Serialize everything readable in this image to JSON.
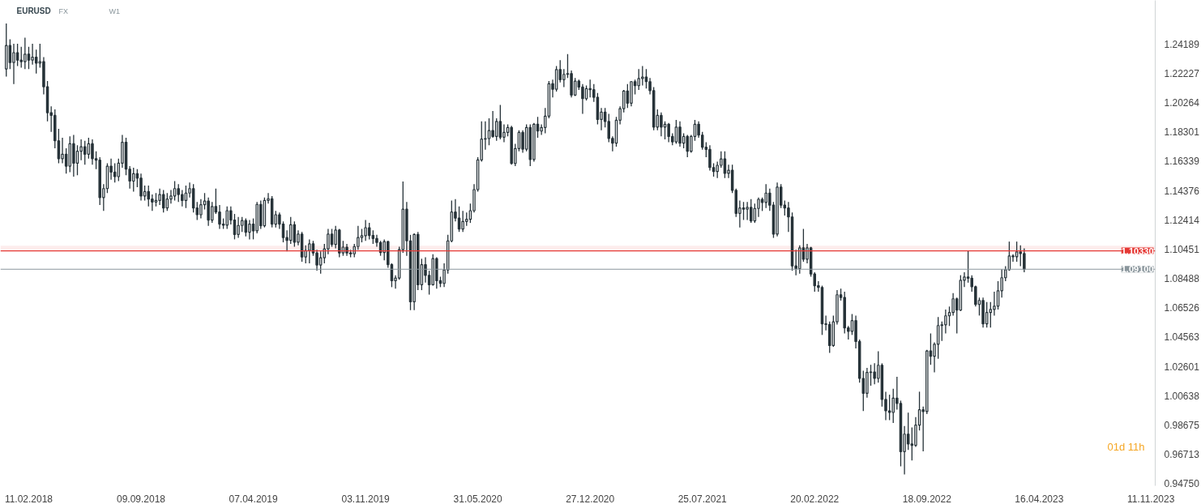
{
  "chart_data": {
    "type": "candlestick",
    "title": "EURUSD",
    "annotations": [
      "FX",
      "W1",
      "01d 11h"
    ],
    "color": "#263238",
    "x": [
      "2017-12-31",
      "2018-01-07",
      "2018-01-14",
      "2018-01-21",
      "2018-01-28",
      "2018-02-04",
      "2018-02-11",
      "2018-02-18",
      "2018-02-25",
      "2018-03-04",
      "2018-03-11",
      "2018-03-18",
      "2018-03-25",
      "2018-04-01",
      "2018-04-08",
      "2018-04-15",
      "2018-04-22",
      "2018-04-29",
      "2018-05-06",
      "2018-05-13",
      "2018-05-20",
      "2018-05-27",
      "2018-06-03",
      "2018-06-10",
      "2018-06-17",
      "2018-06-24",
      "2018-07-01",
      "2018-07-08",
      "2018-07-15",
      "2018-07-22",
      "2018-07-29",
      "2018-08-05",
      "2018-08-12",
      "2018-08-19",
      "2018-08-26",
      "2018-09-02",
      "2018-09-09",
      "2018-09-16",
      "2018-09-23",
      "2018-09-30",
      "2018-10-07",
      "2018-10-14",
      "2018-10-21",
      "2018-10-28",
      "2018-11-04",
      "2018-11-11",
      "2018-11-18",
      "2018-11-25",
      "2018-12-02",
      "2018-12-09",
      "2018-12-16",
      "2018-12-23",
      "2018-12-30",
      "2019-01-06",
      "2019-01-13",
      "2019-01-20",
      "2019-01-27",
      "2019-02-03",
      "2019-02-10",
      "2019-02-17",
      "2019-02-24",
      "2019-03-03",
      "2019-03-10",
      "2019-03-17",
      "2019-03-24",
      "2019-03-31",
      "2019-04-07",
      "2019-04-14",
      "2019-04-21",
      "2019-04-28",
      "2019-05-05",
      "2019-05-12",
      "2019-05-19",
      "2019-05-26",
      "2019-06-02",
      "2019-06-09",
      "2019-06-16",
      "2019-06-23",
      "2019-06-30",
      "2019-07-07",
      "2019-07-14",
      "2019-07-21",
      "2019-07-28",
      "2019-08-04",
      "2019-08-11",
      "2019-08-18",
      "2019-08-25",
      "2019-09-01",
      "2019-09-08",
      "2019-09-15",
      "2019-09-22",
      "2019-09-29",
      "2019-10-06",
      "2019-10-13",
      "2019-10-20",
      "2019-10-27",
      "2019-11-03",
      "2019-11-10",
      "2019-11-17",
      "2019-11-24",
      "2019-12-01",
      "2019-12-08",
      "2019-12-15",
      "2019-12-22",
      "2019-12-29",
      "2020-01-05",
      "2020-01-12",
      "2020-01-19",
      "2020-01-26",
      "2020-02-02",
      "2020-02-09",
      "2020-02-16",
      "2020-02-23",
      "2020-03-01",
      "2020-03-08",
      "2020-03-15",
      "2020-03-22",
      "2020-03-29",
      "2020-04-05",
      "2020-04-12",
      "2020-04-19",
      "2020-04-26",
      "2020-05-03",
      "2020-05-10",
      "2020-05-17",
      "2020-05-24",
      "2020-05-31",
      "2020-06-07",
      "2020-06-14",
      "2020-06-21",
      "2020-06-28",
      "2020-07-05",
      "2020-07-12",
      "2020-07-19",
      "2020-07-26",
      "2020-08-02",
      "2020-08-09",
      "2020-08-16",
      "2020-08-23",
      "2020-08-30",
      "2020-09-06",
      "2020-09-13",
      "2020-09-20",
      "2020-09-27",
      "2020-10-04",
      "2020-10-11",
      "2020-10-18",
      "2020-10-25",
      "2020-11-01",
      "2020-11-08",
      "2020-11-15",
      "2020-11-22",
      "2020-11-29",
      "2020-12-06",
      "2020-12-13",
      "2020-12-20",
      "2020-12-27",
      "2021-01-03",
      "2021-01-10",
      "2021-01-17",
      "2021-01-24",
      "2021-01-31",
      "2021-02-07",
      "2021-02-14",
      "2021-02-21",
      "2021-02-28",
      "2021-03-07",
      "2021-03-14",
      "2021-03-21",
      "2021-03-28",
      "2021-04-04",
      "2021-04-11",
      "2021-04-18",
      "2021-04-25",
      "2021-05-02",
      "2021-05-09",
      "2021-05-16",
      "2021-05-23",
      "2021-05-30",
      "2021-06-06",
      "2021-06-13",
      "2021-06-20",
      "2021-06-27",
      "2021-07-04",
      "2021-07-11",
      "2021-07-18",
      "2021-07-25",
      "2021-08-01",
      "2021-08-08",
      "2021-08-15",
      "2021-08-22",
      "2021-08-29",
      "2021-09-05",
      "2021-09-12",
      "2021-09-19",
      "2021-09-26",
      "2021-10-03",
      "2021-10-10",
      "2021-10-17",
      "2021-10-24",
      "2021-10-31",
      "2021-11-07",
      "2021-11-14",
      "2021-11-21",
      "2021-11-28",
      "2021-12-05",
      "2021-12-12",
      "2021-12-19",
      "2021-12-26",
      "2022-01-02",
      "2022-01-09",
      "2022-01-16",
      "2022-01-23",
      "2022-01-30",
      "2022-02-06",
      "2022-02-13",
      "2022-02-20",
      "2022-02-27",
      "2022-03-06",
      "2022-03-13",
      "2022-03-20",
      "2022-03-27",
      "2022-04-03",
      "2022-04-10",
      "2022-04-17",
      "2022-04-24",
      "2022-05-01",
      "2022-05-08",
      "2022-05-15",
      "2022-05-22",
      "2022-05-29",
      "2022-06-05",
      "2022-06-12",
      "2022-06-19",
      "2022-06-26",
      "2022-07-03",
      "2022-07-10",
      "2022-07-17",
      "2022-07-24",
      "2022-07-31",
      "2022-08-07",
      "2022-08-14",
      "2022-08-21",
      "2022-08-28",
      "2022-09-04",
      "2022-09-11",
      "2022-09-18",
      "2022-09-25",
      "2022-10-02",
      "2022-10-09",
      "2022-10-16",
      "2022-10-23",
      "2022-10-30",
      "2022-11-06",
      "2022-11-13",
      "2022-11-20",
      "2022-11-27",
      "2022-12-04",
      "2022-12-11",
      "2022-12-18",
      "2022-12-25",
      "2023-01-01",
      "2023-01-08",
      "2023-01-15",
      "2023-01-22",
      "2023-01-29",
      "2023-02-05",
      "2023-02-12",
      "2023-02-19",
      "2023-02-26",
      "2023-03-05",
      "2023-03-12",
      "2023-03-19"
    ],
    "ohlc": [
      [
        1.2251,
        1.2555,
        1.22,
        1.2408
      ],
      [
        1.2408,
        1.245,
        1.225,
        1.2294
      ],
      [
        1.2294,
        1.242,
        1.215,
        1.236
      ],
      [
        1.236,
        1.242,
        1.227,
        1.231
      ],
      [
        1.231,
        1.24,
        1.226,
        1.23
      ],
      [
        1.23,
        1.246,
        1.225,
        1.235
      ],
      [
        1.235,
        1.24,
        1.225,
        1.231
      ],
      [
        1.231,
        1.242,
        1.228,
        1.233
      ],
      [
        1.233,
        1.238,
        1.222,
        1.229
      ],
      [
        1.229,
        1.242,
        1.226,
        1.23
      ],
      [
        1.23,
        1.233,
        1.208,
        1.2132
      ],
      [
        1.2132,
        1.217,
        1.19,
        1.1958
      ],
      [
        1.1958,
        1.2,
        1.183,
        1.194
      ],
      [
        1.194,
        1.198,
        1.172,
        1.177
      ],
      [
        1.177,
        1.185,
        1.162,
        1.165
      ],
      [
        1.165,
        1.179,
        1.162,
        1.168
      ],
      [
        1.168,
        1.172,
        1.155,
        1.16
      ],
      [
        1.16,
        1.18,
        1.156,
        1.175
      ],
      [
        1.175,
        1.181,
        1.153,
        1.162
      ],
      [
        1.162,
        1.174,
        1.154,
        1.17
      ],
      [
        1.17,
        1.178,
        1.164,
        1.173
      ],
      [
        1.173,
        1.177,
        1.161,
        1.168
      ],
      [
        1.168,
        1.179,
        1.165,
        1.175
      ],
      [
        1.175,
        1.178,
        1.161,
        1.165
      ],
      [
        1.165,
        1.17,
        1.158,
        1.164
      ],
      [
        1.164,
        1.166,
        1.134,
        1.139
      ],
      [
        1.139,
        1.148,
        1.13,
        1.145
      ],
      [
        1.145,
        1.162,
        1.142,
        1.16
      ],
      [
        1.16,
        1.165,
        1.151,
        1.156
      ],
      [
        1.156,
        1.162,
        1.149,
        1.153
      ],
      [
        1.153,
        1.165,
        1.15,
        1.162
      ],
      [
        1.162,
        1.181,
        1.159,
        1.176
      ],
      [
        1.176,
        1.179,
        1.154,
        1.158
      ],
      [
        1.158,
        1.16,
        1.145,
        1.15
      ],
      [
        1.15,
        1.159,
        1.143,
        1.155
      ],
      [
        1.155,
        1.158,
        1.146,
        1.152
      ],
      [
        1.152,
        1.155,
        1.137,
        1.14
      ],
      [
        1.14,
        1.147,
        1.137,
        1.143
      ],
      [
        1.143,
        1.147,
        1.133,
        1.138
      ],
      [
        1.138,
        1.141,
        1.13,
        1.136
      ],
      [
        1.136,
        1.142,
        1.133,
        1.137
      ],
      [
        1.137,
        1.145,
        1.134,
        1.141
      ],
      [
        1.141,
        1.144,
        1.129,
        1.132
      ],
      [
        1.132,
        1.142,
        1.13,
        1.138
      ],
      [
        1.138,
        1.144,
        1.135,
        1.14
      ],
      [
        1.14,
        1.15,
        1.137,
        1.145
      ],
      [
        1.145,
        1.148,
        1.136,
        1.141
      ],
      [
        1.141,
        1.144,
        1.133,
        1.137
      ],
      [
        1.137,
        1.147,
        1.132,
        1.142
      ],
      [
        1.142,
        1.149,
        1.139,
        1.145
      ],
      [
        1.145,
        1.148,
        1.129,
        1.132
      ],
      [
        1.132,
        1.136,
        1.124,
        1.1275
      ],
      [
        1.1275,
        1.138,
        1.125,
        1.1342
      ],
      [
        1.1342,
        1.142,
        1.131,
        1.1367
      ],
      [
        1.1367,
        1.139,
        1.12,
        1.1239
      ],
      [
        1.1239,
        1.136,
        1.122,
        1.133
      ],
      [
        1.133,
        1.145,
        1.128,
        1.1293
      ],
      [
        1.1293,
        1.134,
        1.118,
        1.1212
      ],
      [
        1.1212,
        1.125,
        1.118,
        1.1205
      ],
      [
        1.1205,
        1.133,
        1.118,
        1.1302
      ],
      [
        1.1302,
        1.133,
        1.121,
        1.1239
      ],
      [
        1.1239,
        1.128,
        1.111,
        1.1143
      ],
      [
        1.1143,
        1.126,
        1.112,
        1.1203
      ],
      [
        1.1203,
        1.126,
        1.116,
        1.1236
      ],
      [
        1.1236,
        1.125,
        1.113,
        1.1158
      ],
      [
        1.1158,
        1.124,
        1.111,
        1.1212
      ],
      [
        1.1212,
        1.125,
        1.111,
        1.1167
      ],
      [
        1.1167,
        1.136,
        1.115,
        1.1344
      ],
      [
        1.1344,
        1.137,
        1.118,
        1.1201
      ],
      [
        1.1201,
        1.139,
        1.119,
        1.1371
      ],
      [
        1.1371,
        1.142,
        1.135,
        1.1382
      ],
      [
        1.1382,
        1.14,
        1.119,
        1.1212
      ],
      [
        1.1212,
        1.13,
        1.119,
        1.1275
      ],
      [
        1.1275,
        1.129,
        1.118,
        1.1212
      ],
      [
        1.1212,
        1.123,
        1.109,
        1.1122
      ],
      [
        1.1122,
        1.117,
        1.103,
        1.1103
      ],
      [
        1.1103,
        1.126,
        1.108,
        1.1208
      ],
      [
        1.1208,
        1.123,
        1.106,
        1.1091
      ],
      [
        1.1091,
        1.117,
        1.107,
        1.1145
      ],
      [
        1.1145,
        1.116,
        1.096,
        1.0992
      ],
      [
        1.0992,
        1.107,
        1.095,
        1.1035
      ],
      [
        1.1035,
        1.111,
        1.095,
        1.108
      ],
      [
        1.108,
        1.11,
        1.1,
        1.1019
      ],
      [
        1.1019,
        1.104,
        1.09,
        1.0938
      ],
      [
        1.0938,
        1.103,
        1.088,
        1.0987
      ],
      [
        1.0987,
        1.108,
        1.095,
        1.1046
      ],
      [
        1.1046,
        1.118,
        1.101,
        1.1145
      ],
      [
        1.1145,
        1.118,
        1.106,
        1.1076
      ],
      [
        1.1076,
        1.12,
        1.105,
        1.1172
      ],
      [
        1.1172,
        1.118,
        1.099,
        1.1019
      ],
      [
        1.1019,
        1.11,
        1.1,
        1.1058
      ],
      [
        1.1058,
        1.108,
        1.1,
        1.1019
      ],
      [
        1.1019,
        1.104,
        1.099,
        1.1013
      ],
      [
        1.1013,
        1.108,
        1.099,
        1.1062
      ],
      [
        1.1062,
        1.12,
        1.104,
        1.1122
      ],
      [
        1.1122,
        1.118,
        1.109,
        1.1134
      ],
      [
        1.1134,
        1.124,
        1.11,
        1.1188
      ],
      [
        1.1188,
        1.122,
        1.111,
        1.1136
      ],
      [
        1.1136,
        1.117,
        1.108,
        1.1116
      ],
      [
        1.1116,
        1.114,
        1.106,
        1.1089
      ],
      [
        1.1089,
        1.11,
        1.1,
        1.1022
      ],
      [
        1.1022,
        1.111,
        1.097,
        1.1095
      ],
      [
        1.1095,
        1.11,
        1.092,
        1.0941
      ],
      [
        1.0941,
        1.095,
        1.079,
        1.0833
      ],
      [
        1.0833,
        1.087,
        1.078,
        1.0851
      ],
      [
        1.0851,
        1.106,
        1.084,
        1.1041
      ],
      [
        1.1041,
        1.1497,
        1.102,
        1.1312
      ],
      [
        1.1312,
        1.136,
        1.1,
        1.11
      ],
      [
        1.11,
        1.114,
        1.0636,
        1.0692
      ],
      [
        1.0692,
        1.115,
        1.0636,
        1.1143
      ],
      [
        1.1143,
        1.116,
        1.077,
        1.0806
      ],
      [
        1.0806,
        1.098,
        1.077,
        1.0941
      ],
      [
        1.0941,
        1.099,
        1.082,
        1.0869
      ],
      [
        1.0869,
        1.09,
        1.074,
        1.0806
      ],
      [
        1.0806,
        1.101,
        1.08,
        1.0981
      ],
      [
        1.0981,
        1.099,
        1.078,
        1.0833
      ],
      [
        1.0833,
        1.086,
        1.079,
        1.0815
      ],
      [
        1.0815,
        1.095,
        1.079,
        1.0905
      ],
      [
        1.0905,
        1.114,
        1.088,
        1.11
      ],
      [
        1.11,
        1.137,
        1.109,
        1.1293
      ],
      [
        1.1293,
        1.138,
        1.123,
        1.1252
      ],
      [
        1.1252,
        1.133,
        1.116,
        1.1179
      ],
      [
        1.1179,
        1.13,
        1.116,
        1.123
      ],
      [
        1.123,
        1.129,
        1.12,
        1.1244
      ],
      [
        1.1244,
        1.135,
        1.122,
        1.1302
      ],
      [
        1.1302,
        1.148,
        1.129,
        1.1443
      ],
      [
        1.1443,
        1.166,
        1.143,
        1.1642
      ],
      [
        1.1642,
        1.19,
        1.163,
        1.1781
      ],
      [
        1.1781,
        1.19,
        1.171,
        1.1785
      ],
      [
        1.1785,
        1.192,
        1.174,
        1.1839
      ],
      [
        1.1839,
        1.197,
        1.179,
        1.1799
      ],
      [
        1.1799,
        1.192,
        1.177,
        1.1899
      ],
      [
        1.1899,
        1.201,
        1.178,
        1.1794
      ],
      [
        1.1794,
        1.188,
        1.176,
        1.1826
      ],
      [
        1.1826,
        1.188,
        1.18,
        1.1859
      ],
      [
        1.1859,
        1.187,
        1.161,
        1.1618
      ],
      [
        1.1618,
        1.175,
        1.16,
        1.1718
      ],
      [
        1.1718,
        1.184,
        1.17,
        1.1826
      ],
      [
        1.1826,
        1.184,
        1.169,
        1.1714
      ],
      [
        1.1714,
        1.188,
        1.17,
        1.1859
      ],
      [
        1.1859,
        1.188,
        1.16,
        1.1645
      ],
      [
        1.1645,
        1.189,
        1.163,
        1.1881
      ],
      [
        1.1881,
        1.193,
        1.179,
        1.1835
      ],
      [
        1.1835,
        1.188,
        1.181,
        1.1859
      ],
      [
        1.1859,
        1.199,
        1.182,
        1.1935
      ],
      [
        1.1935,
        1.217,
        1.192,
        1.2152
      ],
      [
        1.2152,
        1.218,
        1.206,
        1.2115
      ],
      [
        1.2115,
        1.227,
        1.21,
        1.2247
      ],
      [
        1.2247,
        1.231,
        1.216,
        1.2179
      ],
      [
        1.2179,
        1.225,
        1.213,
        1.2215
      ],
      [
        1.2215,
        1.235,
        1.219,
        1.222
      ],
      [
        1.222,
        1.224,
        1.206,
        1.2076
      ],
      [
        1.2076,
        1.219,
        1.207,
        1.217
      ],
      [
        1.217,
        1.218,
        1.211,
        1.213
      ],
      [
        1.213,
        1.215,
        1.195,
        1.2052
      ],
      [
        1.2052,
        1.214,
        1.204,
        1.2119
      ],
      [
        1.2119,
        1.218,
        1.206,
        1.2112
      ],
      [
        1.2112,
        1.215,
        1.203,
        1.2061
      ],
      [
        1.2061,
        1.209,
        1.188,
        1.1913
      ],
      [
        1.1913,
        1.199,
        1.184,
        1.1962
      ],
      [
        1.1962,
        1.199,
        1.186,
        1.1899
      ],
      [
        1.1899,
        1.195,
        1.176,
        1.1786
      ],
      [
        1.1786,
        1.18,
        1.17,
        1.1754
      ],
      [
        1.1754,
        1.193,
        1.173,
        1.1908
      ],
      [
        1.1908,
        1.2,
        1.188,
        1.1985
      ],
      [
        1.1985,
        1.211,
        1.196,
        1.2103
      ],
      [
        1.2103,
        1.215,
        1.199,
        1.2022
      ],
      [
        1.2022,
        1.217,
        1.2,
        1.2166
      ],
      [
        1.2166,
        1.218,
        1.208,
        1.2139
      ],
      [
        1.2139,
        1.225,
        1.211,
        1.2187
      ],
      [
        1.2187,
        1.227,
        1.214,
        1.2197
      ],
      [
        1.2197,
        1.225,
        1.212,
        1.2166
      ],
      [
        1.2166,
        1.219,
        1.208,
        1.2106
      ],
      [
        1.2106,
        1.213,
        1.184,
        1.1862
      ],
      [
        1.1862,
        1.198,
        1.184,
        1.194
      ],
      [
        1.194,
        1.196,
        1.18,
        1.1862
      ],
      [
        1.1862,
        1.19,
        1.178,
        1.1881
      ],
      [
        1.1881,
        1.189,
        1.176,
        1.1799
      ],
      [
        1.1799,
        1.182,
        1.174,
        1.1763
      ],
      [
        1.1763,
        1.191,
        1.175,
        1.1862
      ],
      [
        1.1862,
        1.19,
        1.173,
        1.1754
      ],
      [
        1.1754,
        1.182,
        1.172,
        1.1799
      ],
      [
        1.1799,
        1.181,
        1.166,
        1.17
      ],
      [
        1.17,
        1.181,
        1.169,
        1.1799
      ],
      [
        1.1799,
        1.191,
        1.177,
        1.1881
      ],
      [
        1.1881,
        1.19,
        1.179,
        1.1808
      ],
      [
        1.1808,
        1.183,
        1.171,
        1.1727
      ],
      [
        1.1727,
        1.176,
        1.166,
        1.1712
      ],
      [
        1.1712,
        1.174,
        1.157,
        1.1591
      ],
      [
        1.1591,
        1.162,
        1.153,
        1.1564
      ],
      [
        1.1564,
        1.163,
        1.152,
        1.1606
      ],
      [
        1.1606,
        1.17,
        1.159,
        1.1649
      ],
      [
        1.1649,
        1.17,
        1.152,
        1.1552
      ],
      [
        1.1552,
        1.161,
        1.152,
        1.1573
      ],
      [
        1.1573,
        1.161,
        1.142,
        1.1438
      ],
      [
        1.1438,
        1.145,
        1.126,
        1.1284
      ],
      [
        1.1284,
        1.137,
        1.119,
        1.132
      ],
      [
        1.132,
        1.136,
        1.124,
        1.1312
      ],
      [
        1.1312,
        1.136,
        1.124,
        1.1324
      ],
      [
        1.1324,
        1.138,
        1.122,
        1.1234
      ],
      [
        1.1234,
        1.135,
        1.122,
        1.1317
      ],
      [
        1.1317,
        1.139,
        1.126,
        1.1378
      ],
      [
        1.1378,
        1.139,
        1.13,
        1.1357
      ],
      [
        1.1357,
        1.148,
        1.132,
        1.142
      ],
      [
        1.142,
        1.145,
        1.13,
        1.1339
      ],
      [
        1.1339,
        1.136,
        1.112,
        1.1145
      ],
      [
        1.1145,
        1.149,
        1.113,
        1.146
      ],
      [
        1.146,
        1.148,
        1.132,
        1.1339
      ],
      [
        1.1339,
        1.137,
        1.127,
        1.132
      ],
      [
        1.132,
        1.136,
        1.116,
        1.126
      ],
      [
        1.126,
        1.129,
        1.09,
        1.0932
      ],
      [
        1.0932,
        1.104,
        1.087,
        1.0914
      ],
      [
        1.0914,
        1.107,
        1.088,
        1.1053
      ],
      [
        1.1053,
        1.118,
        1.096,
        1.0977
      ],
      [
        1.0977,
        1.108,
        1.095,
        1.1053
      ],
      [
        1.1053,
        1.106,
        1.086,
        1.0878
      ],
      [
        1.0878,
        1.089,
        1.076,
        1.08
      ],
      [
        1.08,
        1.083,
        1.076,
        1.0788
      ],
      [
        1.0788,
        1.08,
        1.047,
        1.0544
      ],
      [
        1.0544,
        1.06,
        1.05,
        1.054
      ],
      [
        1.054,
        1.056,
        1.035,
        1.0399
      ],
      [
        1.0399,
        1.06,
        1.039,
        1.0558
      ],
      [
        1.0558,
        1.077,
        1.054,
        1.0739
      ],
      [
        1.0739,
        1.078,
        1.07,
        1.0721
      ],
      [
        1.0721,
        1.076,
        1.048,
        1.0517
      ],
      [
        1.0517,
        1.053,
        1.044,
        1.0494
      ],
      [
        1.0494,
        1.061,
        1.047,
        1.0566
      ],
      [
        1.0566,
        1.06,
        1.038,
        1.0426
      ],
      [
        1.0426,
        1.044,
        1.015,
        1.0179
      ],
      [
        1.0179,
        1.023,
        0.996,
        1.0079
      ],
      [
        1.0079,
        1.025,
        1.005,
        1.0219
      ],
      [
        1.0219,
        1.027,
        1.013,
        1.0222
      ],
      [
        1.0222,
        1.028,
        1.014,
        1.0179
      ],
      [
        1.0179,
        1.036,
        1.015,
        1.0267
      ],
      [
        1.0267,
        1.028,
        0.999,
        1.0038
      ],
      [
        1.0038,
        1.009,
        0.99,
        0.9962
      ],
      [
        0.9962,
        1.007,
        0.99,
        0.9951
      ],
      [
        0.9951,
        1.011,
        0.988,
        1.0047
      ],
      [
        1.0047,
        1.019,
        0.997,
        1.0011
      ],
      [
        1.0011,
        1.003,
        0.959,
        0.9689
      ],
      [
        0.9689,
        0.986,
        0.9536,
        0.9806
      ],
      [
        0.9806,
        0.995,
        0.97,
        0.974
      ],
      [
        0.974,
        0.985,
        0.963,
        0.9731
      ],
      [
        0.9731,
        0.992,
        0.972,
        0.9866
      ],
      [
        0.9866,
        1.009,
        0.983,
        0.9969
      ],
      [
        0.9969,
        0.999,
        0.969,
        0.9957
      ],
      [
        0.9957,
        1.037,
        0.994,
        1.0363
      ],
      [
        1.0363,
        1.048,
        1.027,
        1.0327
      ],
      [
        1.0327,
        1.042,
        1.022,
        1.0408
      ],
      [
        1.0408,
        1.059,
        1.031,
        1.0533
      ],
      [
        1.0533,
        1.056,
        1.043,
        1.0538
      ],
      [
        1.0538,
        1.064,
        1.048,
        1.0598
      ],
      [
        1.0598,
        1.066,
        1.053,
        1.062
      ],
      [
        1.062,
        1.075,
        1.06,
        1.0712
      ],
      [
        1.0712,
        1.072,
        1.048,
        1.0636
      ],
      [
        1.0636,
        1.087,
        1.063,
        1.0836
      ],
      [
        1.0836,
        1.089,
        1.079,
        1.0858
      ],
      [
        1.0858,
        1.1033,
        1.082,
        1.085
      ],
      [
        1.085,
        1.087,
        1.076,
        1.0793
      ],
      [
        1.0793,
        1.08,
        1.066,
        1.0674
      ],
      [
        1.0674,
        1.072,
        1.06,
        1.0701
      ],
      [
        1.0701,
        1.072,
        1.052,
        1.0544
      ],
      [
        1.0544,
        1.069,
        1.052,
        1.062
      ],
      [
        1.062,
        1.069,
        1.052,
        1.0641
      ],
      [
        1.0641,
        1.076,
        1.06,
        1.0663
      ],
      [
        1.0663,
        1.083,
        1.064,
        1.0766
      ],
      [
        1.0766,
        1.091,
        1.072,
        1.0853
      ],
      [
        1.0853,
        1.093,
        1.083,
        1.0907
      ],
      [
        1.0907,
        1.1095,
        1.09,
        1.0999
      ],
      [
        1.0999,
        1.101,
        1.096,
        1.0993
      ],
      [
        1.0993,
        1.1095,
        1.096,
        1.1026
      ],
      [
        1.1026,
        1.107,
        1.093,
        1.1015
      ],
      [
        1.1015,
        1.105,
        1.089,
        1.091
      ]
    ],
    "xlim": [
      "2017-12-20",
      "2023-11-19"
    ],
    "xticks": [
      {
        "value": "2018-02-11",
        "label": "11.02.2018"
      },
      {
        "value": "2018-09-09",
        "label": "09.09.2018"
      },
      {
        "value": "2019-04-07",
        "label": "07.04.2019"
      },
      {
        "value": "2019-11-03",
        "label": "03.11.2019"
      },
      {
        "value": "2020-05-31",
        "label": "31.05.2020"
      },
      {
        "value": "2020-12-27",
        "label": "27.12.2020"
      },
      {
        "value": "2021-07-25",
        "label": "25.07.2021"
      },
      {
        "value": "2022-02-20",
        "label": "20.02.2022"
      },
      {
        "value": "2022-09-18",
        "label": "18.09.2022"
      },
      {
        "value": "2023-04-16",
        "label": "16.04.2023"
      },
      {
        "value": "2023-11-11",
        "label": "11.11.2023"
      }
    ],
    "ylim": [
      0.946,
      1.271
    ],
    "yticks": [
      {
        "value": 0.9475,
        "label": "0.94750"
      },
      {
        "value": 0.96713,
        "label": "0.96713"
      },
      {
        "value": 0.98675,
        "label": "0.98675"
      },
      {
        "value": 1.00638,
        "label": "1.00638"
      },
      {
        "value": 1.02601,
        "label": "1.02601"
      },
      {
        "value": 1.04563,
        "label": "1.04563"
      },
      {
        "value": 1.06526,
        "label": "1.06526"
      },
      {
        "value": 1.08488,
        "label": "1.08488"
      },
      {
        "value": 1.10451,
        "label": "1.10451"
      },
      {
        "value": 1.12414,
        "label": "1.12414"
      },
      {
        "value": 1.14376,
        "label": "1.14376"
      },
      {
        "value": 1.16339,
        "label": "1.16339"
      },
      {
        "value": 1.18301,
        "label": "1.18301"
      },
      {
        "value": 1.20264,
        "label": "1.20264"
      },
      {
        "value": 1.22227,
        "label": "1.22227"
      },
      {
        "value": 1.24189,
        "label": "1.24189"
      }
    ],
    "ref_lines": [
      {
        "axis": "y",
        "value": 1.091,
        "label": "1.09100",
        "color": "#8a969c"
      },
      {
        "axis": "y",
        "value": 1.1033,
        "label": "1.10330",
        "color": "#e53935"
      }
    ],
    "bands": [
      {
        "axis": "y",
        "from": 1.1033,
        "to": 1.1068,
        "color": "#fde8e8"
      }
    ],
    "grid": false
  }
}
